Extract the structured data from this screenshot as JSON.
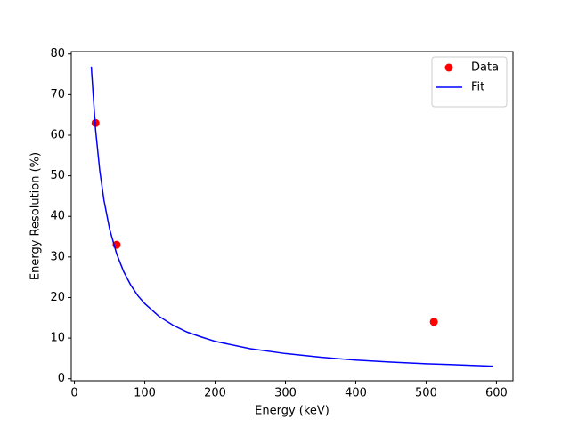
{
  "chart_data": {
    "type": "scatter",
    "xlabel": "Energy (keV)",
    "ylabel": "Energy Resolution (%)",
    "xlim": [
      -4.5,
      623.5
    ],
    "ylim": [
      -0.5,
      80.6
    ],
    "xticks": [
      0,
      100,
      200,
      300,
      400,
      500,
      600
    ],
    "yticks": [
      0,
      10,
      20,
      30,
      40,
      50,
      60,
      70,
      80
    ],
    "grid": false,
    "legend": "upper right",
    "series": [
      {
        "name": "Data",
        "type": "scatter",
        "color": "#ff0000",
        "x": [
          30,
          60,
          511
        ],
        "values": [
          63,
          33,
          14
        ]
      },
      {
        "name": "Fit",
        "type": "line",
        "color": "#0000ff",
        "x": [
          24,
          30,
          36,
          42,
          50,
          60,
          70,
          80,
          90,
          100,
          120,
          140,
          160,
          180,
          200,
          250,
          300,
          350,
          400,
          450,
          500,
          550,
          595
        ],
        "values": [
          76.9,
          61.5,
          51.3,
          44.0,
          36.9,
          30.8,
          26.4,
          23.1,
          20.5,
          18.5,
          15.4,
          13.2,
          11.5,
          10.3,
          9.2,
          7.4,
          6.2,
          5.3,
          4.6,
          4.1,
          3.7,
          3.4,
          3.1
        ]
      }
    ]
  }
}
